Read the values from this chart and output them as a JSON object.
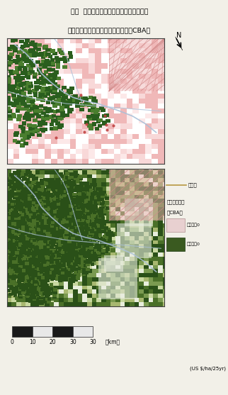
{
  "title_line1": "図３  パソ周辺域における土地利用モデル",
  "title_line2": "　　　構築のための費用便益分析（CBA）",
  "bg_color": "#f2f0e8",
  "map1_bg": "#ffffff",
  "map2_bg": "#7a9a50",
  "scale_ticks": [
    "0",
    "10",
    "20",
    "30"
  ],
  "scale_label": "（km）",
  "unit_label": "(US $/ha/25yr)",
  "legend_forest": "森林部",
  "legend_cba": "費用便益分析",
  "legend_cba2": "（CBA）",
  "legend_pos": "純利益＞0",
  "legend_neg": "純利益＜0",
  "north_label": "N",
  "map1_pink": "#f0b8b8",
  "map1_light_pink": "#f8d8d8",
  "map1_green_dark": "#2a5e1e",
  "map1_green_mid": "#4a7e2e",
  "map1_white": "#ffffff",
  "map1_cream": "#f5f0e8",
  "map2_green_dark": "#2a5018",
  "map2_green_mid": "#4a7028",
  "map2_green_light": "#7a9a50",
  "map2_yellow_green": "#a8b870",
  "hatch_pink": "#f0b8b8",
  "hatch_line": "#d08888",
  "river_color": "#aac0d8",
  "forest_line_color": "#b89840",
  "legend_pos_color": "#e8d0d0",
  "legend_neg_color": "#3a5a20"
}
